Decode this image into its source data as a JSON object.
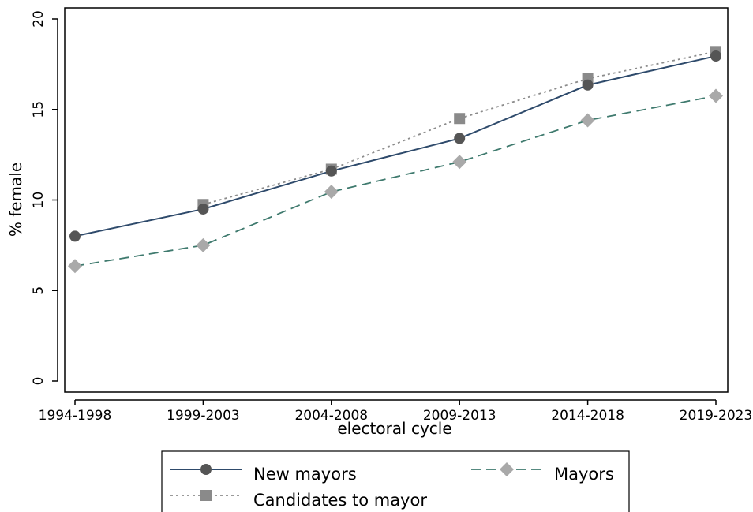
{
  "chart_data": {
    "type": "line",
    "xlabel": "electoral cycle",
    "ylabel": "% female",
    "categories": [
      "1994-1998",
      "1999-2003",
      "2004-2008",
      "2009-2013",
      "2014-2018",
      "2019-2023"
    ],
    "ylim": [
      0,
      20
    ],
    "yticks": [
      0,
      5,
      10,
      15,
      20
    ],
    "grid": false,
    "legend_position": "bottom",
    "series": [
      {
        "name": "New mayors",
        "values": [
          8.0,
          9.5,
          11.6,
          13.4,
          16.35,
          17.95
        ],
        "color": "#2e4a6b",
        "line_style": "solid",
        "marker": "circle",
        "marker_color": "#555555"
      },
      {
        "name": "Candidates to mayor",
        "values": [
          null,
          9.75,
          11.7,
          14.5,
          16.7,
          18.2
        ],
        "color": "#8c8c8c",
        "line_style": "dotted",
        "marker": "square",
        "marker_color": "#8a8a8a"
      },
      {
        "name": "Mayors",
        "values": [
          6.35,
          7.5,
          10.45,
          12.1,
          14.4,
          15.75
        ],
        "color": "#3f7a6e",
        "line_style": "dashed",
        "marker": "diamond",
        "marker_color": "#a9a9a9"
      }
    ]
  }
}
